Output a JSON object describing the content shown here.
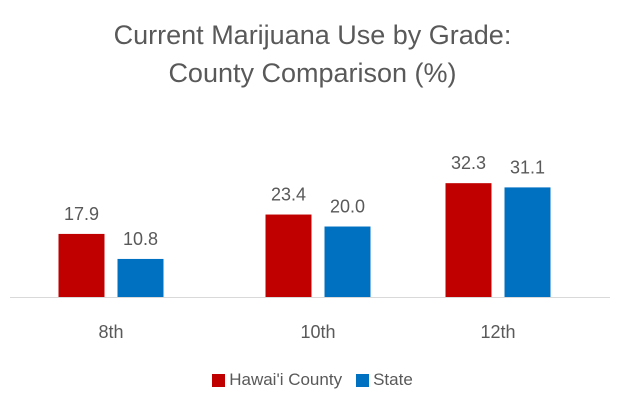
{
  "chart_data": {
    "type": "bar",
    "title_line1": "Current Marijuana Use by Grade:",
    "title_line2": "County Comparison (%)",
    "categories": [
      "8th",
      "10th",
      "12th"
    ],
    "series": [
      {
        "name": "Hawai'i County",
        "color": "#C00000",
        "values": [
          17.9,
          23.4,
          32.3
        ]
      },
      {
        "name": "State",
        "color": "#0070C0",
        "values": [
          10.8,
          20.0,
          31.1
        ]
      }
    ],
    "value_labels": [
      [
        "17.9",
        "23.4",
        "32.3"
      ],
      [
        "10.8",
        "20.0",
        "31.1"
      ]
    ],
    "ylim": [
      0,
      35
    ],
    "grid": false,
    "legend_position": "bottom"
  }
}
